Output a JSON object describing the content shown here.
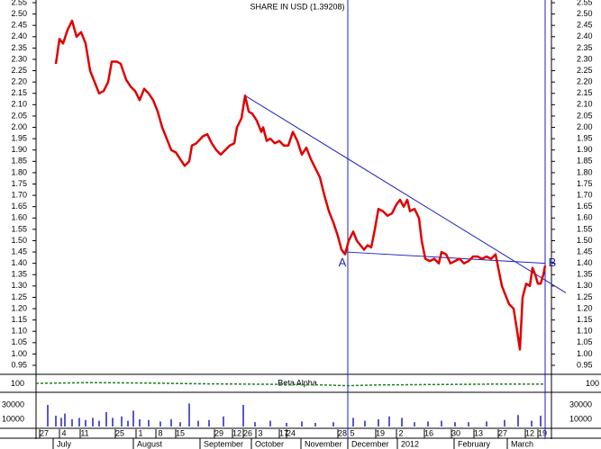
{
  "chart_data": {
    "type": "line",
    "title": "SHARE IN USD (1.39208)",
    "xlim": [
      0,
      572
    ],
    "ylim": [
      0.95,
      2.55
    ],
    "yticks": [
      {
        "value": 0.95,
        "label": "0.95"
      },
      {
        "value": 1.0,
        "label": "1.00"
      },
      {
        "value": 1.05,
        "label": "1.05"
      },
      {
        "value": 1.1,
        "label": "1.10"
      },
      {
        "value": 1.15,
        "label": "1.15"
      },
      {
        "value": 1.2,
        "label": "1.20"
      },
      {
        "value": 1.25,
        "label": "1.25"
      },
      {
        "value": 1.3,
        "label": "1.30"
      },
      {
        "value": 1.35,
        "label": "1.35"
      },
      {
        "value": 1.4,
        "label": "1.40"
      },
      {
        "value": 1.45,
        "label": "1.45"
      },
      {
        "value": 1.5,
        "label": "1.50"
      },
      {
        "value": 1.55,
        "label": "1.55"
      },
      {
        "value": 1.6,
        "label": "1.60"
      },
      {
        "value": 1.65,
        "label": "1.65"
      },
      {
        "value": 1.7,
        "label": "1.70"
      },
      {
        "value": 1.75,
        "label": "1.75"
      },
      {
        "value": 1.8,
        "label": "1.80"
      },
      {
        "value": 1.85,
        "label": "1.85"
      },
      {
        "value": 1.9,
        "label": "1.90"
      },
      {
        "value": 1.95,
        "label": "1.95"
      },
      {
        "value": 2.0,
        "label": "2.00"
      },
      {
        "value": 2.05,
        "label": "2.05"
      },
      {
        "value": 2.1,
        "label": "2.10"
      },
      {
        "value": 2.15,
        "label": "2.15"
      },
      {
        "value": 2.2,
        "label": "2.20"
      },
      {
        "value": 2.25,
        "label": "2.25"
      },
      {
        "value": 2.3,
        "label": "2.30"
      },
      {
        "value": 2.35,
        "label": "2.35"
      },
      {
        "value": 2.4,
        "label": "2.40"
      },
      {
        "value": 2.45,
        "label": "2.45"
      },
      {
        "value": 2.5,
        "label": "2.50"
      },
      {
        "value": 2.55,
        "label": "2.55"
      }
    ],
    "xticks": [
      {
        "value": 9,
        "label": "27"
      },
      {
        "value": 31,
        "label": "4"
      },
      {
        "value": 54,
        "label": "11"
      },
      {
        "value": 93,
        "label": "25"
      },
      {
        "value": 116,
        "label": "1"
      },
      {
        "value": 138,
        "label": "8"
      },
      {
        "value": 160,
        "label": "15"
      },
      {
        "value": 203,
        "label": "29"
      },
      {
        "value": 223,
        "label": "12"
      },
      {
        "value": 235,
        "label": "26"
      },
      {
        "value": 249,
        "label": "3"
      },
      {
        "value": 275,
        "label": "17"
      },
      {
        "value": 283,
        "label": "24"
      },
      {
        "value": 340,
        "label": "28"
      },
      {
        "value": 351,
        "label": "5"
      },
      {
        "value": 382,
        "label": "19"
      },
      {
        "value": 405,
        "label": "2"
      },
      {
        "value": 436,
        "label": "16"
      },
      {
        "value": 466,
        "label": "30"
      },
      {
        "value": 491,
        "label": "13"
      },
      {
        "value": 518,
        "label": "27"
      },
      {
        "value": 548,
        "label": "12"
      },
      {
        "value": 562,
        "label": "19"
      }
    ],
    "month_ticks": [
      {
        "value": 23,
        "label": "July"
      },
      {
        "value": 112,
        "label": "August"
      },
      {
        "value": 186,
        "label": "September"
      },
      {
        "value": 243,
        "label": "October"
      },
      {
        "value": 298,
        "label": "November"
      },
      {
        "value": 350,
        "label": "December"
      },
      {
        "value": 405,
        "label": "2012"
      },
      {
        "value": 468,
        "label": "February"
      },
      {
        "value": 527,
        "label": "March"
      }
    ],
    "series": [
      {
        "color": "#e00000",
        "x": [
          22,
          26,
          30,
          35,
          40,
          45,
          50,
          55,
          60,
          65,
          70,
          75,
          80,
          84,
          90,
          94,
          100,
          105,
          110,
          115,
          120,
          125,
          130,
          135,
          140,
          145,
          150,
          155,
          160,
          165,
          170,
          173,
          178,
          185,
          190,
          195,
          200,
          205,
          210,
          215,
          220,
          223,
          228,
          232,
          236,
          240,
          245,
          250,
          252,
          256,
          260,
          265,
          270,
          275,
          280,
          285,
          290,
          295,
          300,
          305,
          310,
          315,
          320,
          325,
          330,
          335,
          339,
          343,
          347,
          352,
          356,
          360,
          364,
          368,
          372,
          376,
          380,
          385,
          390,
          395,
          400,
          404,
          408,
          412,
          415,
          420,
          425,
          428,
          432,
          437,
          442,
          447,
          450,
          455,
          460,
          465,
          470,
          475,
          480,
          485,
          490,
          495,
          500,
          505,
          510,
          513,
          517,
          520,
          525,
          530,
          534,
          537,
          540,
          544,
          548,
          551,
          554,
          557,
          560,
          563,
          565
        ],
        "values": [
          2.28,
          2.39,
          2.37,
          2.43,
          2.47,
          2.4,
          2.42,
          2.37,
          2.25,
          2.2,
          2.15,
          2.16,
          2.2,
          2.29,
          2.29,
          2.28,
          2.21,
          2.18,
          2.16,
          2.12,
          2.17,
          2.15,
          2.12,
          2.07,
          2.0,
          1.95,
          1.9,
          1.89,
          1.86,
          1.83,
          1.85,
          1.92,
          1.93,
          1.96,
          1.97,
          1.93,
          1.9,
          1.88,
          1.9,
          1.92,
          1.93,
          2.0,
          2.04,
          2.14,
          2.07,
          2.06,
          2.03,
          1.98,
          2.0,
          1.94,
          1.95,
          1.93,
          1.94,
          1.92,
          1.92,
          1.98,
          1.94,
          1.88,
          1.91,
          1.86,
          1.82,
          1.78,
          1.7,
          1.63,
          1.58,
          1.52,
          1.46,
          1.44,
          1.5,
          1.54,
          1.5,
          1.48,
          1.46,
          1.48,
          1.47,
          1.55,
          1.64,
          1.63,
          1.61,
          1.62,
          1.66,
          1.68,
          1.65,
          1.68,
          1.63,
          1.64,
          1.6,
          1.5,
          1.42,
          1.41,
          1.42,
          1.4,
          1.45,
          1.44,
          1.4,
          1.41,
          1.42,
          1.4,
          1.41,
          1.43,
          1.43,
          1.42,
          1.43,
          1.42,
          1.44,
          1.38,
          1.3,
          1.27,
          1.22,
          1.2,
          1.1,
          1.02,
          1.25,
          1.31,
          1.3,
          1.38,
          1.35,
          1.31,
          1.31,
          1.35,
          1.39
        ]
      }
    ],
    "trendlines": [
      {
        "x": [
          232,
          588
        ],
        "y": [
          2.14,
          1.27
        ]
      },
      {
        "x": [
          344,
          565
        ],
        "y": [
          1.45,
          1.4
        ]
      }
    ],
    "vlines": [
      346,
      565
    ],
    "annotations": [
      {
        "text": "A",
        "x": 340,
        "y": 1.4
      },
      {
        "text": "B",
        "x": 573,
        "y": 1.4
      }
    ],
    "beta_alpha": {
      "label": "Beta Alpha",
      "ylim": [
        80,
        120
      ],
      "yticks": [
        100
      ],
      "x": [
        0,
        60,
        120,
        180,
        240,
        300,
        346,
        380,
        440,
        500,
        565
      ],
      "values": [
        101,
        103,
        102,
        100,
        99,
        98,
        95,
        97,
        98,
        99,
        99
      ]
    },
    "volume": {
      "ylim": [
        0,
        45000
      ],
      "yticks": [
        30000,
        10000
      ],
      "x": [
        13,
        22,
        28,
        32,
        40,
        48,
        55,
        63,
        70,
        78,
        85,
        95,
        102,
        108,
        115,
        125,
        138,
        150,
        160,
        170,
        180,
        192,
        208,
        230,
        243,
        260,
        278,
        295,
        310,
        330,
        352,
        365,
        380,
        392,
        406,
        420,
        435,
        450,
        465,
        480,
        500,
        520,
        535,
        550,
        560
      ],
      "values": [
        30000,
        15000,
        12000,
        18000,
        10000,
        12000,
        9000,
        12000,
        8000,
        20000,
        12000,
        14000,
        8000,
        22000,
        10000,
        9000,
        7000,
        10000,
        6000,
        32000,
        8000,
        9000,
        14000,
        30000,
        6000,
        8000,
        5000,
        7000,
        5000,
        6000,
        12000,
        8000,
        10000,
        14000,
        12000,
        6000,
        7000,
        8000,
        6000,
        6000,
        7000,
        9000,
        16000,
        8000,
        15000
      ]
    }
  }
}
